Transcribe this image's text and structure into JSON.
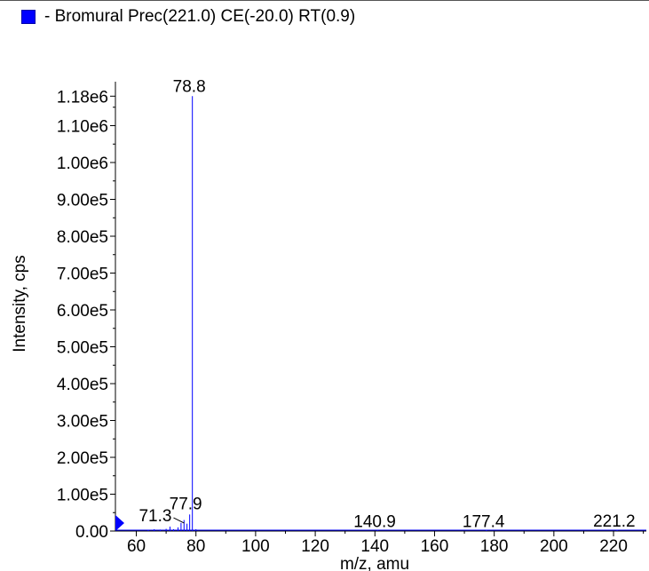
{
  "legend": {
    "prefix": "- ",
    "label": "Bromural Prec(221.0) CE(-20.0) RT(0.9)",
    "color": "#0000ff"
  },
  "chart_data": {
    "type": "bar",
    "xlabel": "m/z, amu",
    "ylabel": "Intensity, cps",
    "xlim": [
      53,
      231
    ],
    "ylim": [
      0,
      1200000
    ],
    "x_ticks": [
      60,
      80,
      100,
      120,
      140,
      160,
      180,
      200,
      220
    ],
    "y_ticks": [
      {
        "value": 0,
        "label": "0.00"
      },
      {
        "value": 100000,
        "label": "1.00e5"
      },
      {
        "value": 200000,
        "label": "2.00e5"
      },
      {
        "value": 300000,
        "label": "3.00e5"
      },
      {
        "value": 400000,
        "label": "4.00e5"
      },
      {
        "value": 500000,
        "label": "5.00e5"
      },
      {
        "value": 600000,
        "label": "6.00e5"
      },
      {
        "value": 700000,
        "label": "7.00e5"
      },
      {
        "value": 800000,
        "label": "8.00e5"
      },
      {
        "value": 900000,
        "label": "9.00e5"
      },
      {
        "value": 1000000,
        "label": "1.00e6"
      },
      {
        "value": 1100000,
        "label": "1.10e6"
      },
      {
        "value": 1180000,
        "label": "1.18e6"
      }
    ],
    "series": [
      {
        "color": "#0000ff",
        "peaks": [
          {
            "mz": 64.0,
            "intensity": 3000
          },
          {
            "mz": 66.0,
            "intensity": 5000
          },
          {
            "mz": 68.0,
            "intensity": 4000
          },
          {
            "mz": 70.0,
            "intensity": 6000
          },
          {
            "mz": 71.3,
            "intensity": 12000
          },
          {
            "mz": 72.5,
            "intensity": 5000
          },
          {
            "mz": 74.0,
            "intensity": 10000
          },
          {
            "mz": 75.0,
            "intensity": 22000
          },
          {
            "mz": 76.0,
            "intensity": 30000
          },
          {
            "mz": 77.0,
            "intensity": 20000
          },
          {
            "mz": 77.9,
            "intensity": 45000
          },
          {
            "mz": 78.8,
            "intensity": 1180000
          },
          {
            "mz": 80.0,
            "intensity": 5000
          },
          {
            "mz": 140.9,
            "intensity": 1000
          },
          {
            "mz": 177.4,
            "intensity": 1500
          },
          {
            "mz": 221.2,
            "intensity": 2000
          }
        ]
      }
    ],
    "peak_labels": [
      {
        "mz": 78.8,
        "intensity": 1180000,
        "text": "78.8"
      },
      {
        "mz": 77.9,
        "intensity": 45000,
        "text": "77.9"
      },
      {
        "mz": 71.3,
        "intensity": 12000,
        "text": "71.3"
      },
      {
        "mz": 140.9,
        "intensity": 1000,
        "text": "140.9"
      },
      {
        "mz": 177.4,
        "intensity": 1500,
        "text": "177.4"
      },
      {
        "mz": 221.2,
        "intensity": 2000,
        "text": "221.2"
      }
    ],
    "marker_color": "#0000ff"
  }
}
